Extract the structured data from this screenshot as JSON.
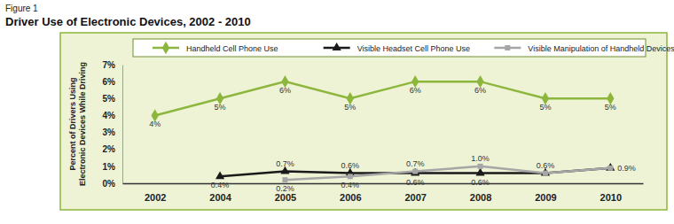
{
  "chart_data": {
    "type": "line",
    "figure_label": "Figure 1",
    "title": "Driver Use of Electronic Devices, 2002 - 2010",
    "y_label": "Percent of Drivers Using Electronic Devices While Driving",
    "categories": [
      "2002",
      "2004",
      "2005",
      "2006",
      "2007",
      "2008",
      "2009",
      "2010"
    ],
    "series": [
      {
        "name": "Handheld Cell Phone Use",
        "color": "#8db63c",
        "marker": "diamond",
        "values": [
          4,
          5,
          6,
          5,
          6,
          6,
          5,
          5
        ],
        "value_labels": [
          "4%",
          "5%",
          "6%",
          "5%",
          "6%",
          "6%",
          "5%",
          "5%"
        ]
      },
      {
        "name": "Visible Headset Cell Phone Use",
        "color": "#1a1a1a",
        "marker": "triangle",
        "values": [
          null,
          0.4,
          0.7,
          0.6,
          0.6,
          0.6,
          0.6,
          0.9
        ],
        "value_labels": [
          null,
          "0.4%",
          "0.7%",
          "0.6%",
          "0.6%",
          "0.6%",
          "0.6%",
          null
        ]
      },
      {
        "name": "Visible Manipulation of Handheld Devices",
        "color": "#a6a6a6",
        "marker": "square",
        "values": [
          null,
          null,
          0.2,
          0.4,
          0.7,
          1.0,
          0.6,
          0.9
        ],
        "value_labels": [
          null,
          null,
          "0.2%",
          "0.4%",
          "0.7%",
          "1.0%",
          null,
          "0.9%"
        ]
      }
    ],
    "ylim": [
      0,
      7
    ],
    "yticks": [
      {
        "value": 0,
        "label": "0%"
      },
      {
        "value": 1,
        "label": "1%"
      },
      {
        "value": 2,
        "label": "2%"
      },
      {
        "value": 3,
        "label": "3%"
      },
      {
        "value": 4,
        "label": "4%"
      },
      {
        "value": 5,
        "label": "5%"
      },
      {
        "value": 6,
        "label": "6%"
      },
      {
        "value": 7,
        "label": "7%"
      }
    ],
    "grid": false,
    "legend": "top",
    "data_labels": true
  }
}
